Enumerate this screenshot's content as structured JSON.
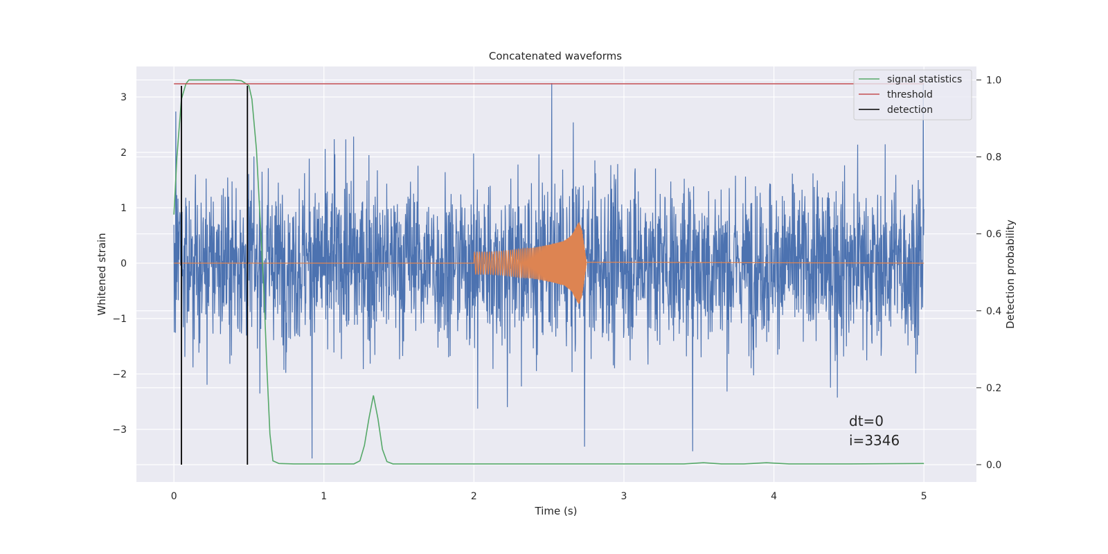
{
  "chart_data": {
    "type": "line",
    "title": "Concatenated waveforms",
    "xlabel": "Time (s)",
    "ylabel": "Whitened strain",
    "y2label": "Detection probability",
    "xlim": [
      -0.25,
      5.35
    ],
    "ylim": [
      -3.95,
      3.55
    ],
    "y2lim": [
      -0.045,
      1.035
    ],
    "xticks": [
      "0",
      "1",
      "2",
      "3",
      "4",
      "5"
    ],
    "yticks": [
      "−3",
      "−2",
      "−1",
      "0",
      "1",
      "2",
      "3"
    ],
    "y2ticks": [
      "0.0",
      "0.2",
      "0.4",
      "0.6",
      "0.8",
      "1.0"
    ],
    "grid": true,
    "legend_position": "top-right",
    "colors": {
      "strain": "#4c72b0",
      "template": "#dd8452",
      "signal_statistics": "#55a868",
      "threshold": "#c44e52",
      "detection": "#000000",
      "background": "#eaeaf2",
      "grid": "#ffffff"
    },
    "series": [
      {
        "name": "signal statistics",
        "axis": "right",
        "x": [
          0.0,
          0.02,
          0.05,
          0.08,
          0.1,
          0.2,
          0.3,
          0.4,
          0.45,
          0.5,
          0.52,
          0.55,
          0.58,
          0.6,
          0.62,
          0.64,
          0.66,
          0.7,
          0.8,
          1.0,
          1.2,
          1.24,
          1.27,
          1.3,
          1.33,
          1.36,
          1.39,
          1.42,
          1.46,
          1.5,
          2.0,
          3.0,
          3.4,
          3.53,
          3.65,
          3.8,
          3.95,
          4.1,
          4.5,
          5.0
        ],
        "y": [
          0.65,
          0.8,
          0.95,
          0.99,
          1.0,
          1.0,
          1.0,
          1.0,
          0.998,
          0.985,
          0.95,
          0.82,
          0.6,
          0.45,
          0.25,
          0.08,
          0.01,
          0.003,
          0.002,
          0.002,
          0.002,
          0.01,
          0.05,
          0.12,
          0.18,
          0.12,
          0.04,
          0.008,
          0.002,
          0.002,
          0.002,
          0.002,
          0.002,
          0.005,
          0.002,
          0.002,
          0.005,
          0.002,
          0.002,
          0.003
        ]
      },
      {
        "name": "threshold",
        "axis": "right",
        "x": [
          0.0,
          5.0
        ],
        "y": [
          0.99,
          0.99
        ]
      },
      {
        "name": "detection",
        "axis": "left",
        "x": [
          0.05,
          0.49
        ],
        "y": [
          3.2,
          3.2
        ]
      }
    ],
    "strain_noise": {
      "axis": "left",
      "x_range": [
        0.0,
        5.0
      ],
      "typical_amplitude": 1.0,
      "extremes": [
        3.25,
        -3.6
      ]
    },
    "template": {
      "axis": "left",
      "x": [
        2.0,
        2.1,
        2.2,
        2.3,
        2.4,
        2.5,
        2.6,
        2.65,
        2.7,
        2.72,
        2.75,
        3.0
      ],
      "amplitude": [
        0.2,
        0.2,
        0.22,
        0.25,
        0.28,
        0.33,
        0.4,
        0.5,
        0.75,
        0.6,
        0.02,
        0.0
      ]
    },
    "annotations": [
      "dt=0",
      "i=3346"
    ]
  }
}
